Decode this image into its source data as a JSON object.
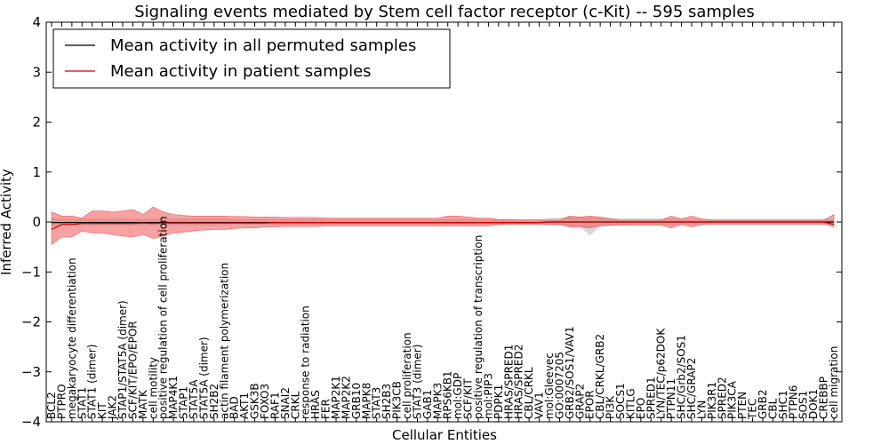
{
  "chart_data": {
    "type": "line",
    "title": "Signaling events mediated by Stem cell factor receptor (c-Kit) -- 595 samples",
    "xlabel": "Cellular Entities",
    "ylabel": "Inferred Activity",
    "ylim": [
      -4,
      4
    ],
    "yticks": [
      "4",
      "3",
      "2",
      "1",
      "0",
      "−1",
      "−2",
      "−3",
      "−4"
    ],
    "grid": false,
    "legend_position": "top-left",
    "categories": [
      "BCL2",
      "PTPRO",
      "megakaryocyte differentiation",
      "STAT1",
      "STAT1 (dimer)",
      "KIT",
      "JAK2",
      "STAP1/STAT5A (dimer)",
      "SCF/KIT/EPO/EPOR",
      "MATK",
      "cell motility",
      "positive regulation of cell proliferation",
      "MAP4K1",
      "STAP1",
      "STAT5A",
      "STAT5A (dimer)",
      "SH2B2",
      "actin filament polymerization",
      "BAD",
      "AKT1",
      "GSK3B",
      "FOXO3",
      "RAF1",
      "SNAI2",
      "CRKL",
      "response to radiation",
      "HRAS",
      "FER",
      "MAP2K1",
      "MAP2K2",
      "GRB10",
      "MAPK8",
      "STAT3",
      "SH2B3",
      "PIK3CB",
      "cell proliferation",
      "STAT3 (dimer)",
      "GAB1",
      "MAPK3",
      "RPS6KB1",
      "mol:GDP",
      "SCF/KIT",
      "positive regulation of transcription",
      "mol:PIP3",
      "PDPK1",
      "HRAS/SPRED1",
      "HRAS/SPRED2",
      "CBL/CRKL",
      "VAV1",
      "mol:Gleevec",
      "GO:0007205",
      "GRB2/SOS1/VAV1",
      "GRAP2",
      "EPOR",
      "CBL/CRKL/GRB2",
      "PI3K",
      "SOCS1",
      "KITLG",
      "EPO",
      "SPRED1",
      "LYN/TEC/p62DOK",
      "PTPN11",
      "SHC/Grb2/SOS1",
      "SHC/GRAP2",
      "LYN",
      "PIK3R1",
      "SPRED2",
      "PIK3CA",
      "PTEN",
      "TEC",
      "GRB2",
      "CBL",
      "SHC1",
      "PTPN6",
      "SOS1",
      "DOK1",
      "CREBBP",
      "cell migration"
    ],
    "series": [
      {
        "name": "Mean activity in all permuted samples",
        "color": "#000000",
        "values": [
          -0.01,
          -0.01,
          -0.01,
          -0.01,
          -0.01,
          -0.01,
          -0.01,
          -0.01,
          -0.01,
          -0.01,
          -0.01,
          -0.01,
          -0.01,
          -0.01,
          -0.01,
          -0.01,
          -0.01,
          -0.01,
          -0.01,
          -0.01,
          -0.01,
          -0.01,
          -0.01,
          -0.01,
          -0.01,
          -0.01,
          -0.01,
          -0.01,
          -0.01,
          -0.01,
          -0.01,
          -0.01,
          -0.01,
          -0.01,
          -0.01,
          -0.01,
          -0.01,
          -0.01,
          -0.01,
          -0.01,
          -0.01,
          -0.01,
          -0.01,
          -0.01,
          -0.01,
          -0.01,
          -0.01,
          -0.01,
          -0.01,
          0.0,
          0.0,
          0.0,
          0.0,
          0.0,
          0.0,
          0.0,
          0.0,
          0.0,
          0.0,
          0.0,
          0.0,
          0.0,
          0.0,
          0.0,
          0.0,
          0.0,
          0.0,
          0.0,
          0.0,
          0.0,
          0.0,
          0.0,
          0.0,
          0.0,
          0.0,
          0.0,
          0.0,
          0.0
        ],
        "band_color": "#cccccc",
        "band_low": [
          -0.08,
          -0.06,
          -0.06,
          -0.06,
          -0.06,
          -0.06,
          -0.06,
          -0.06,
          -0.06,
          -0.06,
          -0.06,
          -0.06,
          -0.06,
          -0.06,
          -0.06,
          -0.06,
          -0.06,
          -0.06,
          -0.05,
          -0.05,
          -0.05,
          -0.05,
          -0.05,
          -0.05,
          -0.05,
          -0.05,
          -0.05,
          -0.05,
          -0.05,
          -0.05,
          -0.05,
          -0.05,
          -0.05,
          -0.05,
          -0.05,
          -0.05,
          -0.05,
          -0.05,
          -0.05,
          -0.05,
          -0.05,
          -0.05,
          -0.05,
          -0.05,
          -0.05,
          -0.05,
          -0.05,
          -0.05,
          -0.05,
          -0.06,
          -0.06,
          -0.08,
          -0.08,
          -0.26,
          -0.08,
          -0.08,
          -0.06,
          -0.06,
          -0.06,
          -0.06,
          -0.06,
          -0.06,
          -0.05,
          -0.05,
          -0.05,
          -0.05,
          -0.05,
          -0.05,
          -0.05,
          -0.05,
          -0.05,
          -0.05,
          -0.05,
          -0.05,
          -0.05,
          -0.05,
          -0.05,
          -0.05
        ],
        "band_high": [
          0.08,
          0.06,
          0.06,
          0.06,
          0.06,
          0.06,
          0.06,
          0.06,
          0.06,
          0.06,
          0.06,
          0.06,
          0.06,
          0.06,
          0.06,
          0.06,
          0.06,
          0.06,
          0.05,
          0.05,
          0.05,
          0.05,
          0.05,
          0.05,
          0.05,
          0.05,
          0.05,
          0.05,
          0.05,
          0.05,
          0.05,
          0.05,
          0.05,
          0.05,
          0.05,
          0.05,
          0.05,
          0.05,
          0.05,
          0.05,
          0.05,
          0.05,
          0.05,
          0.05,
          0.05,
          0.05,
          0.05,
          0.05,
          0.05,
          0.08,
          0.08,
          0.1,
          0.1,
          0.1,
          0.08,
          0.08,
          0.06,
          0.06,
          0.06,
          0.06,
          0.06,
          0.06,
          0.05,
          0.05,
          0.05,
          0.05,
          0.05,
          0.05,
          0.05,
          0.05,
          0.05,
          0.05,
          0.05,
          0.05,
          0.05,
          0.05,
          0.05,
          0.05
        ]
      },
      {
        "name": "Mean activity in patient samples",
        "color": "#cc0000",
        "values": [
          -0.15,
          -0.05,
          -0.05,
          -0.03,
          -0.03,
          -0.03,
          -0.03,
          -0.03,
          -0.03,
          -0.02,
          -0.03,
          -0.02,
          -0.02,
          -0.02,
          -0.02,
          -0.02,
          -0.02,
          -0.02,
          -0.02,
          -0.02,
          -0.02,
          -0.02,
          -0.01,
          -0.01,
          -0.01,
          -0.01,
          -0.01,
          -0.01,
          -0.01,
          -0.01,
          -0.01,
          -0.01,
          -0.01,
          -0.01,
          -0.01,
          -0.01,
          -0.01,
          -0.01,
          -0.01,
          -0.01,
          -0.01,
          -0.01,
          -0.01,
          -0.01,
          -0.01,
          -0.01,
          -0.01,
          -0.01,
          -0.01,
          0.0,
          0.0,
          0.0,
          0.0,
          0.0,
          0.0,
          0.0,
          0.0,
          0.0,
          0.0,
          0.0,
          0.0,
          0.0,
          0.0,
          0.0,
          0.0,
          0.0,
          0.0,
          0.0,
          0.0,
          0.0,
          0.0,
          0.0,
          0.0,
          0.0,
          0.0,
          0.0,
          0.0,
          -0.05
        ],
        "band_color": "#ee5555",
        "band_low": [
          -0.45,
          -0.3,
          -0.3,
          -0.18,
          -0.22,
          -0.22,
          -0.25,
          -0.28,
          -0.3,
          -0.25,
          -0.33,
          -0.28,
          -0.22,
          -0.2,
          -0.18,
          -0.16,
          -0.15,
          -0.15,
          -0.13,
          -0.12,
          -0.12,
          -0.1,
          -0.1,
          -0.09,
          -0.09,
          -0.09,
          -0.09,
          -0.08,
          -0.08,
          -0.08,
          -0.08,
          -0.08,
          -0.08,
          -0.08,
          -0.08,
          -0.08,
          -0.08,
          -0.08,
          -0.08,
          -0.08,
          -0.08,
          -0.08,
          -0.08,
          -0.08,
          -0.05,
          -0.04,
          -0.04,
          -0.04,
          -0.04,
          -0.05,
          -0.05,
          -0.1,
          -0.1,
          -0.12,
          -0.08,
          -0.06,
          -0.06,
          -0.06,
          -0.06,
          -0.06,
          -0.06,
          -0.12,
          -0.05,
          -0.1,
          -0.05,
          -0.04,
          -0.04,
          -0.04,
          -0.04,
          -0.04,
          -0.04,
          -0.04,
          -0.04,
          -0.04,
          -0.04,
          -0.04,
          -0.04,
          -0.1
        ],
        "band_high": [
          0.2,
          0.12,
          0.12,
          0.08,
          0.22,
          0.22,
          0.2,
          0.22,
          0.25,
          0.15,
          0.3,
          0.2,
          0.15,
          0.13,
          0.12,
          0.12,
          0.12,
          0.12,
          0.11,
          0.11,
          0.1,
          0.1,
          0.1,
          0.09,
          0.09,
          0.09,
          0.09,
          0.08,
          0.08,
          0.08,
          0.08,
          0.08,
          0.08,
          0.08,
          0.08,
          0.08,
          0.08,
          0.08,
          0.08,
          0.12,
          0.12,
          0.1,
          0.08,
          0.08,
          0.05,
          0.05,
          0.04,
          0.04,
          0.04,
          0.04,
          0.04,
          0.12,
          0.1,
          0.12,
          0.1,
          0.06,
          0.04,
          0.04,
          0.04,
          0.04,
          0.04,
          0.12,
          0.06,
          0.12,
          0.06,
          0.04,
          0.04,
          0.04,
          0.04,
          0.04,
          0.04,
          0.04,
          0.04,
          0.04,
          0.04,
          0.04,
          0.04,
          0.15
        ]
      }
    ]
  }
}
